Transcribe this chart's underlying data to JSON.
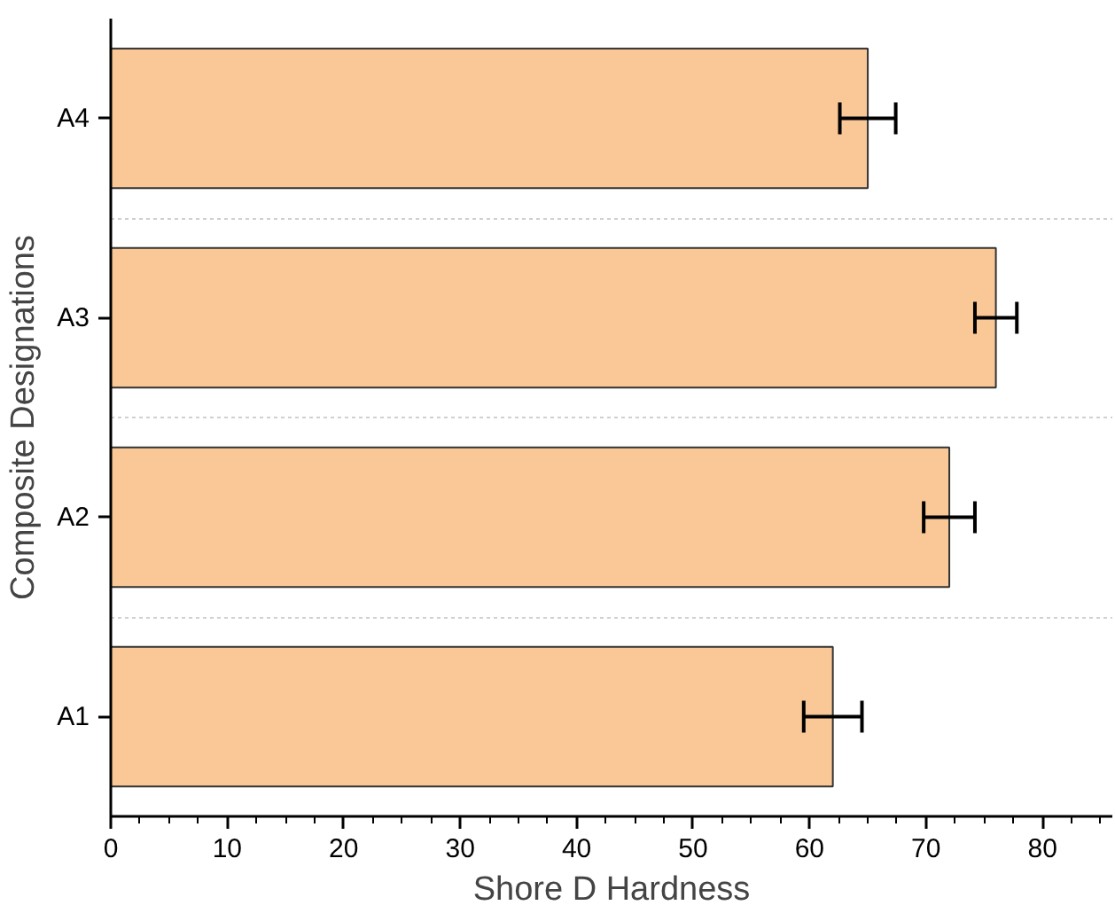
{
  "chart_data": {
    "type": "bar",
    "orientation": "horizontal",
    "xlabel": "Shore D Hardness",
    "ylabel": "Composite Designations",
    "categories": [
      "A4",
      "A3",
      "A2",
      "A1"
    ],
    "values": [
      65,
      76,
      72,
      62
    ],
    "errors": [
      2.4,
      1.8,
      2.2,
      2.5
    ],
    "color": "#f9c896",
    "xlim": [
      0,
      86
    ],
    "xticks": [
      0,
      10,
      20,
      30,
      40,
      50,
      60,
      70,
      80
    ],
    "grid": "y"
  }
}
